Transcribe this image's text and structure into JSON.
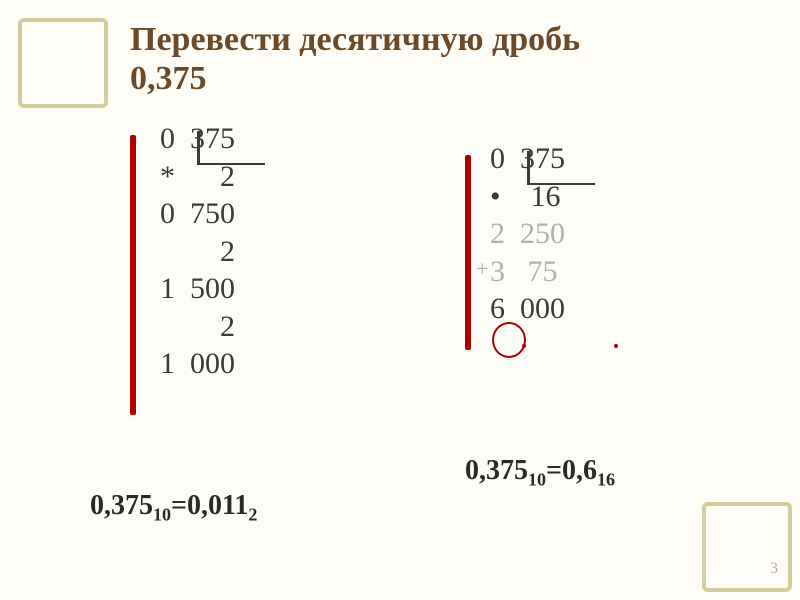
{
  "title_line1": "Перевести десятичную дробь",
  "title_line2": "0,375",
  "left": {
    "r0": "0  375",
    "r1": "*      2",
    "r2": "0  750",
    "r3": "        2",
    "r4": "1  500",
    "r5": "        2",
    "r6": "1  000"
  },
  "right": {
    "r0": "0  375",
    "r1": "•    16",
    "r2": "2  250",
    "r3": "3   75",
    "r4": "6  000"
  },
  "result_left_a": "0,375",
  "result_left_sub1": "10",
  "result_left_eq": "=0,011",
  "result_left_sub2": "2",
  "result_right_a": "0,375",
  "result_right_sub1": "10",
  "result_right_eq": "=0,6",
  "result_right_sub2": "16",
  "plus": "+",
  "pagenum": "3",
  "colors": {
    "background": "#fdfcf6",
    "deco_border": "#d4cc9a",
    "title": "#6b4a2c",
    "text": "#3a3a3a",
    "gray": "#b0b0b0",
    "red": "#b00000"
  }
}
